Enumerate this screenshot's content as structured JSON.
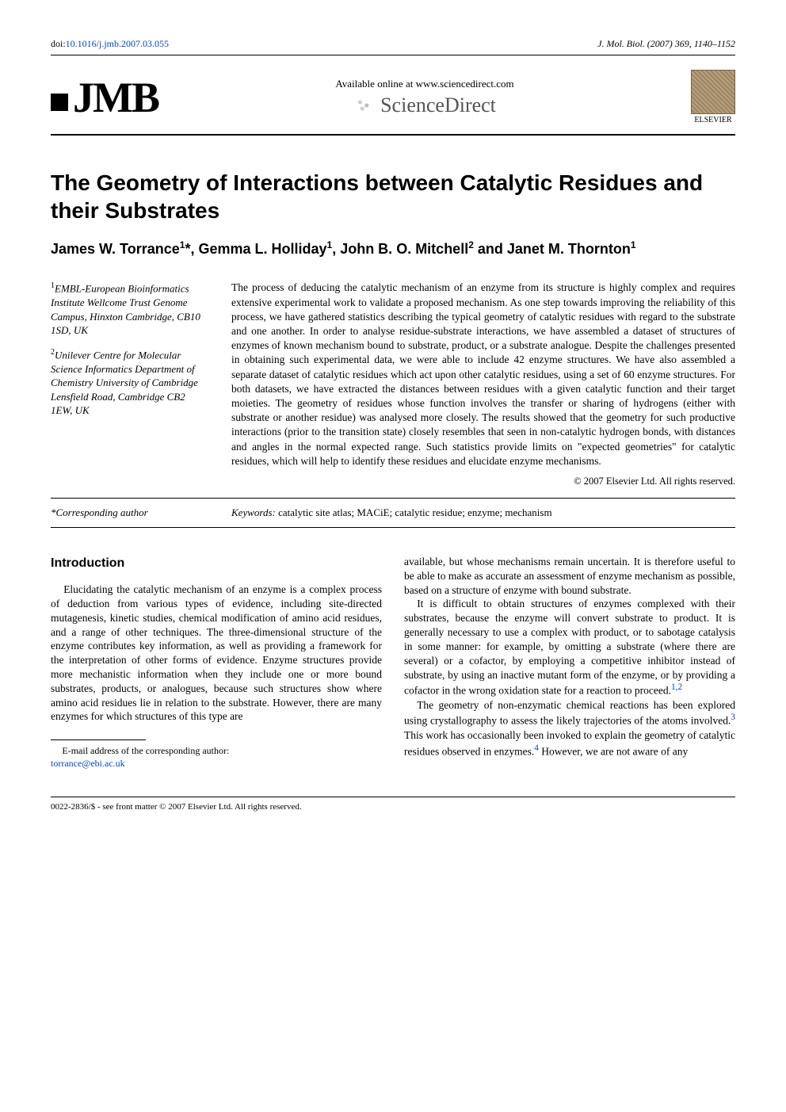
{
  "header": {
    "doi_prefix": "doi:",
    "doi": "10.1016/j.jmb.2007.03.055",
    "journal_ref": "J. Mol. Biol. (2007) 369, 1140–1152"
  },
  "banner": {
    "jmb": "JMB",
    "available_line": "Available online at www.sciencedirect.com",
    "sciencedirect": "ScienceDirect",
    "elsevier": "ELSEVIER"
  },
  "title": "The Geometry of Interactions between Catalytic Residues and their Substrates",
  "authors_html": "James W. Torrance<sup>1</sup>*, Gemma L. Holliday<sup>1</sup>, John B. O. Mitchell<sup>2</sup> and Janet M. Thornton<sup>1</sup>",
  "affiliations": {
    "a1_sup": "1",
    "a1": "EMBL-European Bioinformatics Institute Wellcome Trust Genome Campus, Hinxton Cambridge, CB10 1SD, UK",
    "a2_sup": "2",
    "a2": "Unilever Centre for Molecular Science Informatics Department of Chemistry University of Cambridge Lensfield Road, Cambridge CB2 1EW, UK"
  },
  "abstract": "The process of deducing the catalytic mechanism of an enzyme from its structure is highly complex and requires extensive experimental work to validate a proposed mechanism. As one step towards improving the reliability of this process, we have gathered statistics describing the typical geometry of catalytic residues with regard to the substrate and one another. In order to analyse residue-substrate interactions, we have assembled a dataset of structures of enzymes of known mechanism bound to substrate, product, or a substrate analogue. Despite the challenges presented in obtaining such experimental data, we were able to include 42 enzyme structures. We have also assembled a separate dataset of catalytic residues which act upon other catalytic residues, using a set of 60 enzyme structures. For both datasets, we have extracted the distances between residues with a given catalytic function and their target moieties. The geometry of residues whose function involves the transfer or sharing of hydrogens (either with substrate or another residue) was analysed more closely. The results showed that the geometry for such productive interactions (prior to the transition state) closely resembles that seen in non-catalytic hydrogen bonds, with distances and angles in the normal expected range. Such statistics provide limits on \"expected geometries\" for catalytic residues, which will help to identify these residues and elucidate enzyme mechanisms.",
  "copyright": "© 2007 Elsevier Ltd. All rights reserved.",
  "corr_author": "*Corresponding author",
  "keywords_label": "Keywords:",
  "keywords": " catalytic site atlas; MACiE; catalytic residue; enzyme; mechanism",
  "intro_head": "Introduction",
  "col1_p1": "Elucidating the catalytic mechanism of an enzyme is a complex process of deduction from various types of evidence, including site-directed mutagenesis, kinetic studies, chemical modification of amino acid residues, and a range of other techniques. The three-dimensional structure of the enzyme contributes key information, as well as providing a framework for the interpretation of other forms of evidence. Enzyme structures provide more mechanistic information when they include one or more bound substrates, products, or analogues, because such structures show where amino acid residues lie in relation to the substrate. However, there are many enzymes for which structures of this type are",
  "footnote_label": "E-mail address of the corresponding author:",
  "footnote_email": "torrance@ebi.ac.uk",
  "col2_p1": "available, but whose mechanisms remain uncertain. It is therefore useful to be able to make as accurate an assessment of enzyme mechanism as possible, based on a structure of enzyme with bound substrate.",
  "col2_p2_a": "It is difficult to obtain structures of enzymes complexed with their substrates, because the enzyme will convert substrate to product. It is generally necessary to use a complex with product, or to sabotage catalysis in some manner: for example, by omitting a substrate (where there are several) or a cofactor, by employing a competitive inhibitor instead of substrate, by using an inactive mutant form of the enzyme, or by providing a cofactor in the wrong oxidation state for a reaction to proceed.",
  "col2_p2_ref": "1,2",
  "col2_p3_a": "The geometry of non-enzymatic chemical reactions has been explored using crystallography to assess the likely trajectories of the atoms involved.",
  "col2_p3_ref1": "3",
  "col2_p3_b": " This work has occasionally been invoked to explain the geometry of catalytic residues observed in enzymes.",
  "col2_p3_ref2": "4",
  "col2_p3_c": " However, we are not aware of any",
  "footer": "0022-2836/$ - see front matter © 2007 Elsevier Ltd. All rights reserved."
}
